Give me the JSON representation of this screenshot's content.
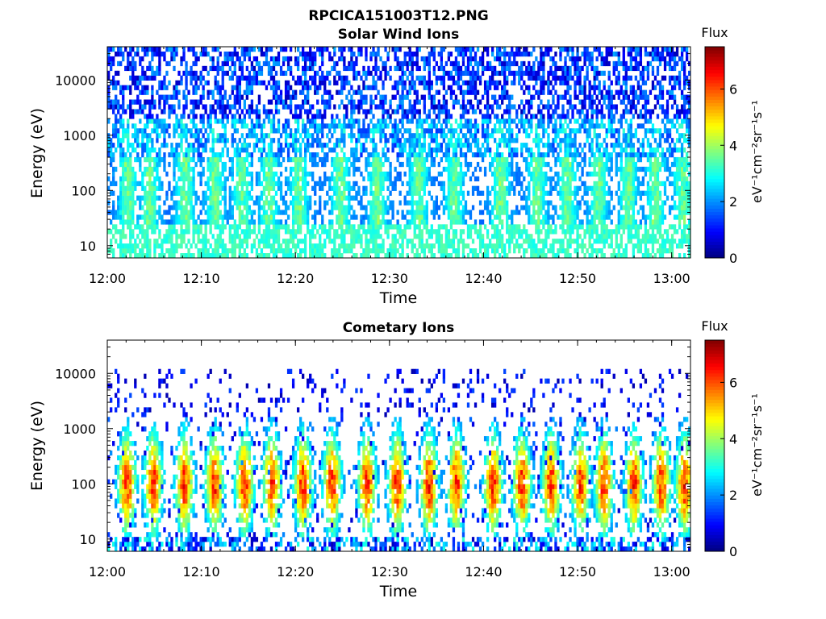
{
  "figure": {
    "title": "RPCICA151003T12.PNG"
  },
  "colorbar": {
    "title": "Flux",
    "label": "eV⁻¹cm⁻²sr⁻¹s⁻¹",
    "ticks": [
      "0",
      "2",
      "4",
      "6"
    ],
    "range": [
      0,
      7.5
    ],
    "colormap": "jet"
  },
  "chart_data": [
    {
      "type": "heatmap",
      "title": "Solar Wind Ions",
      "xlabel": "Time",
      "ylabel": "Energy (eV)",
      "x_tick_labels": [
        "12:00",
        "12:10",
        "12:20",
        "12:30",
        "12:40",
        "12:50",
        "13:00"
      ],
      "x_range_minutes": [
        0,
        62
      ],
      "y_tick_labels": [
        "10",
        "100",
        "1000",
        "10000"
      ],
      "y_scale": "log",
      "y_range": [
        6,
        40000
      ],
      "z_range": [
        0,
        7.5
      ],
      "bursts_minutes": [
        2.2,
        4.5,
        8.3,
        11.5,
        14.3,
        17.2,
        20.4,
        24.8,
        28.7,
        33.1,
        36.9,
        41.8,
        45.7,
        48.9,
        52.2,
        55.4,
        58.3,
        61.2
      ],
      "background_flux_high_energy": 1.5,
      "peak_flux": 3.8,
      "low_energy_band_flux": 3.5
    },
    {
      "type": "heatmap",
      "title": "Cometary Ions",
      "xlabel": "Time",
      "ylabel": "Energy (eV)",
      "x_tick_labels": [
        "12:00",
        "12:10",
        "12:20",
        "12:30",
        "12:40",
        "12:50",
        "13:00"
      ],
      "x_range_minutes": [
        0,
        62
      ],
      "y_tick_labels": [
        "10",
        "100",
        "1000",
        "10000"
      ],
      "y_scale": "log",
      "y_range": [
        6,
        40000
      ],
      "z_range": [
        0,
        7.5
      ],
      "bursts_minutes": [
        2.1,
        4.9,
        8.2,
        11.4,
        14.6,
        17.5,
        20.8,
        23.9,
        27.6,
        30.8,
        34.2,
        37.1,
        41.0,
        44.1,
        47.2,
        50.3,
        52.8,
        56.0,
        58.9,
        61.4
      ],
      "peak_flux": 6.5,
      "burst_center_energy": 100,
      "sparse_flux_high_energy": 1.0
    }
  ]
}
